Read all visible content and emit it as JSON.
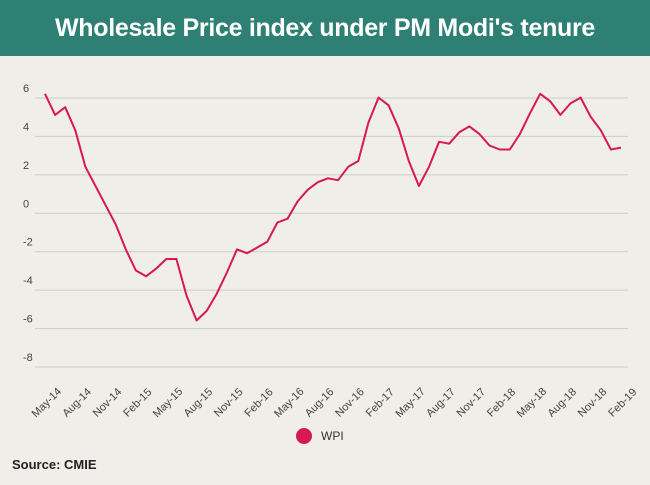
{
  "colors": {
    "header_bg": "#2e7f74",
    "line": "#d8194e",
    "grid": "#cccccc",
    "background": "#f0eee9"
  },
  "chart_data": {
    "type": "line",
    "title": "Wholesale Price index under PM Modi's tenure",
    "xlabel": "",
    "ylabel": "",
    "ylim": [
      -8,
      6
    ],
    "yticks": [
      6,
      4,
      2,
      0,
      -2,
      -4,
      -6,
      -8
    ],
    "grid": true,
    "legend_position": "bottom-center",
    "x_tick_labels": [
      "May-14",
      "Aug-14",
      "Nov-14",
      "Feb-15",
      "May-15",
      "Aug-15",
      "Nov-15",
      "Feb-16",
      "May-16",
      "Aug-16",
      "Nov-16",
      "Feb-17",
      "May-17",
      "Aug-17",
      "Nov-17",
      "Feb-18",
      "May-18",
      "Aug-18",
      "Nov-18",
      "Feb-19"
    ],
    "x": [
      "May-14",
      "Jun-14",
      "Jul-14",
      "Aug-14",
      "Sep-14",
      "Oct-14",
      "Nov-14",
      "Dec-14",
      "Jan-15",
      "Feb-15",
      "Mar-15",
      "Apr-15",
      "May-15",
      "Jun-15",
      "Jul-15",
      "Aug-15",
      "Sep-15",
      "Oct-15",
      "Nov-15",
      "Dec-15",
      "Jan-16",
      "Feb-16",
      "Mar-16",
      "Apr-16",
      "May-16",
      "Jun-16",
      "Jul-16",
      "Aug-16",
      "Sep-16",
      "Oct-16",
      "Nov-16",
      "Dec-16",
      "Jan-17",
      "Feb-17",
      "Mar-17",
      "Apr-17",
      "May-17",
      "Jun-17",
      "Jul-17",
      "Aug-17",
      "Sep-17",
      "Oct-17",
      "Nov-17",
      "Dec-17",
      "Jan-18",
      "Feb-18",
      "Mar-18",
      "Apr-18",
      "May-18",
      "Jun-18",
      "Jul-18",
      "Aug-18",
      "Sep-18",
      "Oct-18",
      "Nov-18",
      "Dec-18",
      "Jan-19",
      "Feb-19"
    ],
    "series": [
      {
        "name": "WPI",
        "values": [
          5.7,
          4.6,
          5.0,
          3.8,
          1.9,
          0.9,
          -0.1,
          -1.1,
          -2.4,
          -3.5,
          -3.8,
          -3.4,
          -2.9,
          -2.9,
          -4.8,
          -6.1,
          -5.6,
          -4.7,
          -3.6,
          -2.4,
          -2.6,
          -2.3,
          -2.0,
          -1.0,
          -0.8,
          0.1,
          0.7,
          1.1,
          1.3,
          1.2,
          1.9,
          2.2,
          4.2,
          5.5,
          5.1,
          3.9,
          2.2,
          0.9,
          1.9,
          3.2,
          3.1,
          3.7,
          4.0,
          3.6,
          3.0,
          2.8,
          2.8,
          3.6,
          4.7,
          5.7,
          5.3,
          4.6,
          5.2,
          5.5,
          4.5,
          3.8,
          2.8,
          2.9
        ]
      }
    ],
    "source": "Source: CMIE",
    "legend": [
      "WPI"
    ]
  }
}
